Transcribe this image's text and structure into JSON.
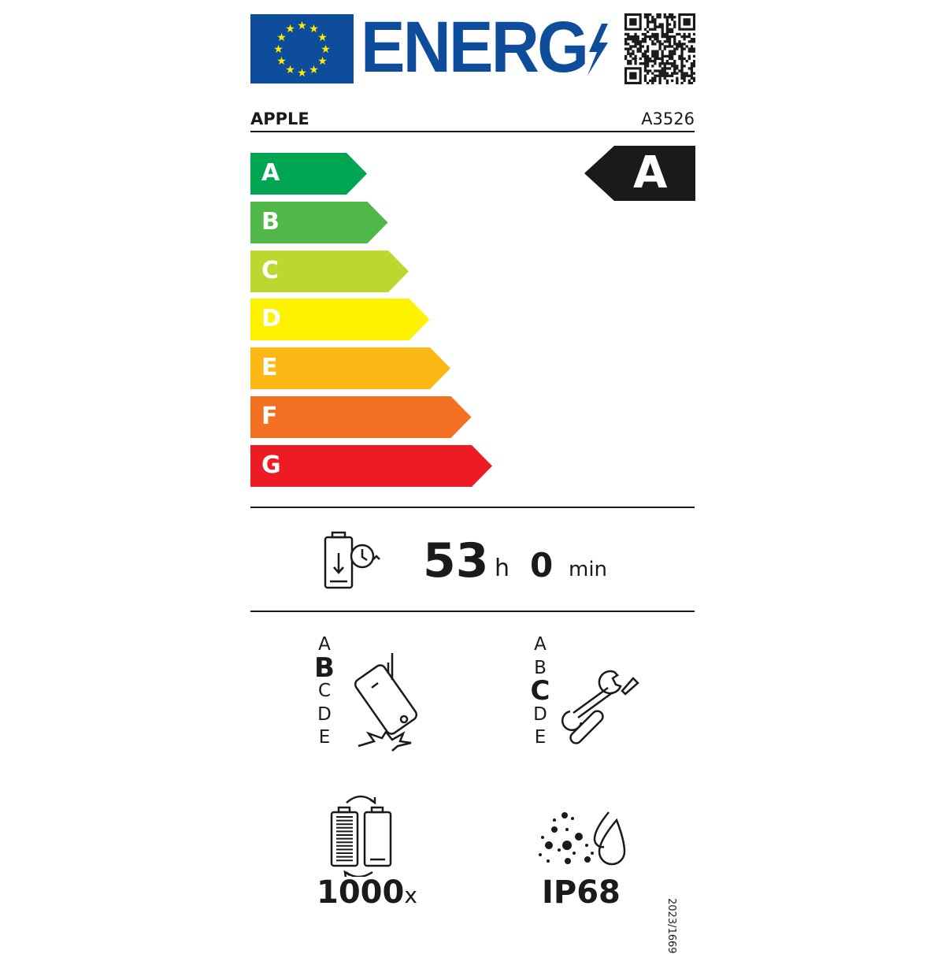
{
  "header": {
    "logo_text": "ENERG",
    "brand": "APPLE",
    "model": "A3526"
  },
  "energy_scale": {
    "classes": [
      {
        "label": "A",
        "color": "#00a651"
      },
      {
        "label": "B",
        "color": "#50b848"
      },
      {
        "label": "C",
        "color": "#bed630"
      },
      {
        "label": "D",
        "color": "#fff200"
      },
      {
        "label": "E",
        "color": "#fcb814"
      },
      {
        "label": "F",
        "color": "#f36f21"
      },
      {
        "label": "G",
        "color": "#ed1c24"
      }
    ],
    "rating": "A"
  },
  "battery_endurance": {
    "hours": "53",
    "hours_unit": "h",
    "minutes": "0",
    "minutes_unit": "min",
    "icon": "battery-clock-icon"
  },
  "drop_resistance": {
    "scale": [
      "A",
      "B",
      "C",
      "D",
      "E"
    ],
    "selected": "B",
    "icon": "falling-phone-icon"
  },
  "repairability": {
    "scale": [
      "A",
      "B",
      "C",
      "D",
      "E"
    ],
    "selected": "C",
    "icon": "wrench-screwdriver-icon"
  },
  "battery_cycles": {
    "value": "1000",
    "unit": "x",
    "icon": "battery-cycle-icon"
  },
  "ingress_protection": {
    "value": "IP68",
    "icon": "dust-water-icon"
  },
  "regulation": "2023/1669",
  "colors": {
    "eu_blue": "#0e4c9c",
    "eu_star": "#ffed00"
  }
}
